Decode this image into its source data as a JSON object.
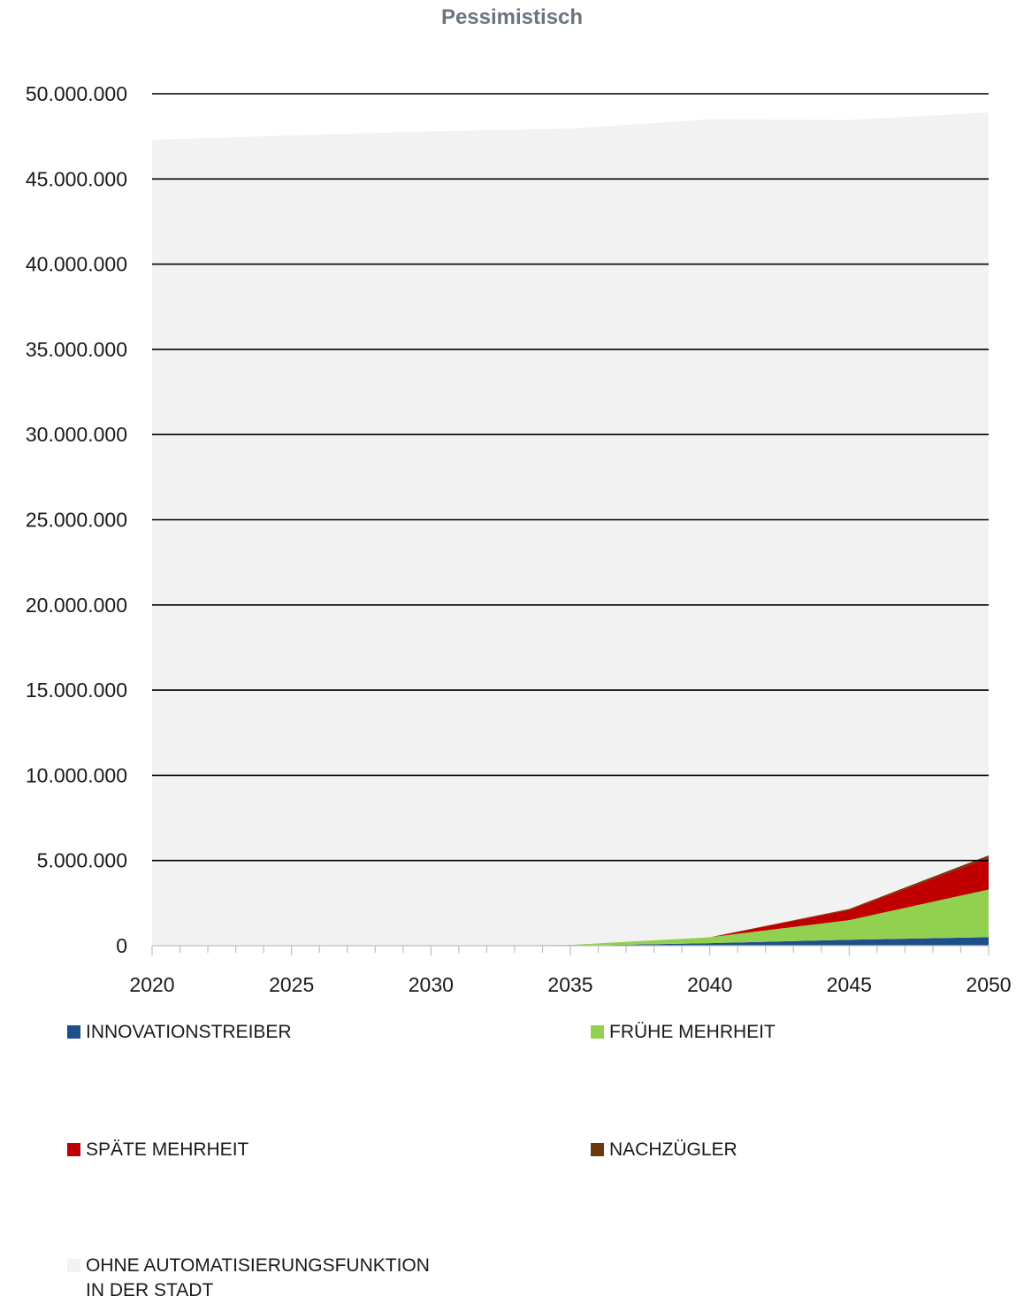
{
  "chart_data": {
    "type": "area",
    "stacked": true,
    "title": "Pessimistisch",
    "xlabel": "",
    "ylabel": "",
    "x": [
      2020,
      2025,
      2030,
      2035,
      2040,
      2045,
      2050
    ],
    "x_ticks": [
      "2020",
      "2025",
      "2030",
      "2035",
      "2040",
      "2045",
      "2050"
    ],
    "y_ticks": [
      "0",
      "5.000.000",
      "10.000.000",
      "15.000.000",
      "20.000.000",
      "25.000.000",
      "30.000.000",
      "35.000.000",
      "40.000.000",
      "45.000.000",
      "50.000.000"
    ],
    "ylim": [
      0,
      50000000
    ],
    "xlim": [
      2020,
      2050
    ],
    "grid": true,
    "legend_position": "bottom",
    "series": [
      {
        "name": "INNOVATIONSTREIBER",
        "color": "#1f4e8c",
        "values": [
          0,
          0,
          0,
          0,
          150000,
          350000,
          500000
        ]
      },
      {
        "name": "FRÜHE MEHRHEIT",
        "color": "#92d050",
        "values": [
          0,
          0,
          0,
          50000,
          350000,
          1150000,
          2800000
        ]
      },
      {
        "name": "SPÄTE MEHRHEIT",
        "color": "#c00000",
        "values": [
          0,
          0,
          0,
          0,
          0,
          600000,
          1850000
        ]
      },
      {
        "name": "NACHZÜGLER",
        "color": "#6b3a0a",
        "values": [
          0,
          0,
          0,
          0,
          0,
          60000,
          150000
        ]
      },
      {
        "name": "OHNE AUTOMATISIERUNGSFUNKTION\nIN DER STADT",
        "color": "#f2f2f2",
        "values": [
          47300000,
          47550000,
          47800000,
          47900000,
          48000000,
          46300000,
          43600000
        ]
      }
    ]
  }
}
